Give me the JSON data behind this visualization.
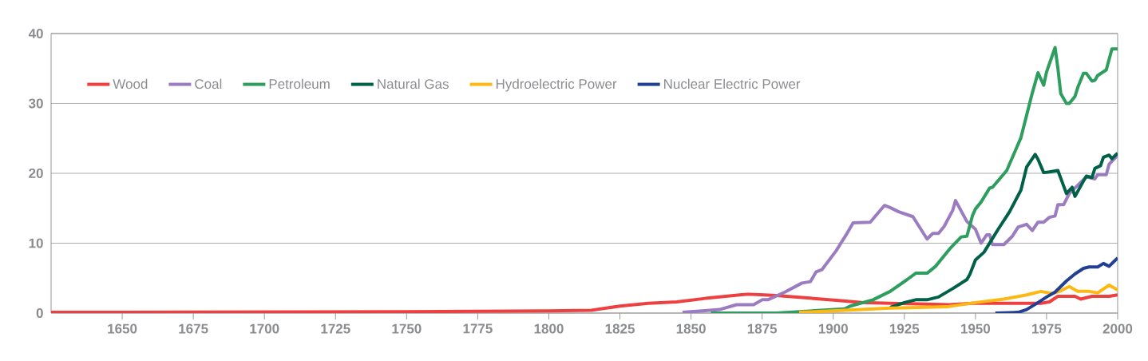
{
  "chart_data": {
    "type": "line",
    "xlim": [
      1625,
      2000
    ],
    "ylim": [
      0,
      40
    ],
    "xticks": [
      1650,
      1675,
      1700,
      1725,
      1750,
      1775,
      1800,
      1825,
      1850,
      1875,
      1900,
      1925,
      1950,
      1975,
      2000
    ],
    "yticks": [
      0,
      10,
      20,
      30,
      40
    ],
    "grid": "y",
    "legend": "top left",
    "marker": "none",
    "line_style": "solid",
    "series": [
      {
        "name": "Wood",
        "color": "#ee4040",
        "x": [
          1625,
          1650,
          1750,
          1800,
          1815,
          1825,
          1835,
          1845,
          1855,
          1865,
          1870,
          1880,
          1890,
          1902,
          1910,
          1920,
          1930,
          1941,
          1949,
          1960,
          1973,
          1976,
          1979,
          1985,
          1987,
          1991,
          1997,
          2000
        ],
        "values": [
          0.1,
          0.1,
          0.2,
          0.3,
          0.4,
          1.0,
          1.4,
          1.6,
          2.1,
          2.5,
          2.7,
          2.5,
          2.2,
          1.8,
          1.5,
          1.4,
          1.3,
          1.2,
          1.4,
          1.4,
          1.4,
          1.6,
          2.4,
          2.4,
          2.0,
          2.4,
          2.4,
          2.6
        ]
      },
      {
        "name": "Coal",
        "color": "#9b7cc0",
        "x": [
          1847,
          1854,
          1860,
          1866,
          1872,
          1875,
          1877,
          1883,
          1889,
          1892,
          1894,
          1896,
          1901,
          1905,
          1907,
          1913,
          1918,
          1920,
          1923,
          1928,
          1933,
          1935,
          1937,
          1939,
          1942,
          1943,
          1947,
          1950,
          1952,
          1954,
          1955,
          1956,
          1960,
          1963,
          1965,
          1968,
          1970,
          1972,
          1974,
          1976,
          1978,
          1979,
          1981,
          1983,
          1985,
          1989,
          1992,
          1993,
          1996,
          1997,
          2000
        ],
        "values": [
          0.1,
          0.3,
          0.5,
          1.2,
          1.2,
          1.9,
          1.9,
          3.0,
          4.3,
          4.5,
          5.9,
          6.2,
          8.9,
          11.5,
          12.9,
          13.0,
          15.4,
          15.1,
          14.5,
          13.8,
          10.6,
          11.4,
          11.4,
          12.4,
          14.7,
          16.1,
          13.1,
          12.0,
          10.0,
          11.2,
          11.2,
          9.8,
          9.8,
          11.0,
          12.3,
          12.7,
          11.8,
          13.0,
          13.0,
          13.7,
          13.9,
          15.5,
          15.5,
          17.1,
          17.9,
          19.5,
          19.2,
          19.8,
          19.8,
          21.3,
          22.6
        ]
      },
      {
        "name": "Petroleum",
        "color": "#2e9e5e",
        "x": [
          1857,
          1880,
          1904,
          1906,
          1914,
          1920,
          1926,
          1929,
          1933,
          1936,
          1941,
          1945,
          1947,
          1949,
          1950,
          1952,
          1955,
          1956,
          1961,
          1966,
          1970,
          1972,
          1974,
          1975,
          1978,
          1979,
          1980,
          1982,
          1983,
          1985,
          1986,
          1988,
          1989,
          1991,
          1992,
          1993,
          1996,
          1998,
          2000
        ],
        "values": [
          0.0,
          0.0,
          0.6,
          1.0,
          1.9,
          3.1,
          4.8,
          5.7,
          5.7,
          6.7,
          9.2,
          10.9,
          11.0,
          14.0,
          14.9,
          15.9,
          17.9,
          18.0,
          20.4,
          25.1,
          31.5,
          34.4,
          32.6,
          34.5,
          38.0,
          35.0,
          31.4,
          30.0,
          30.0,
          31.0,
          32.3,
          34.3,
          34.3,
          33.2,
          33.3,
          34.0,
          34.8,
          37.8,
          37.8
        ]
      },
      {
        "name": "Natural Gas",
        "color": "#006048",
        "x": [
          1920,
          1925,
          1929,
          1933,
          1937,
          1942,
          1947,
          1948,
          1950,
          1953,
          1958,
          1962,
          1966,
          1968,
          1971,
          1972,
          1974,
          1976,
          1979,
          1980,
          1982,
          1984,
          1985,
          1988,
          1989,
          1991,
          1992,
          1994,
          1995,
          1997,
          1998,
          2000
        ],
        "values": [
          0.8,
          1.5,
          1.9,
          1.9,
          2.3,
          3.5,
          4.8,
          5.5,
          7.6,
          8.7,
          12.0,
          14.5,
          17.6,
          20.9,
          22.7,
          22.0,
          20.1,
          20.2,
          20.4,
          19.3,
          17.1,
          18.0,
          16.7,
          18.9,
          19.6,
          19.4,
          20.7,
          21.1,
          22.3,
          22.6,
          22.1,
          22.9
        ]
      },
      {
        "name": "Hydroelectric Power",
        "color": "#fdb813",
        "x": [
          1888,
          1900,
          1910,
          1920,
          1930,
          1940,
          1950,
          1960,
          1968,
          1973,
          1977,
          1980,
          1983,
          1986,
          1990,
          1993,
          1997,
          2000
        ],
        "values": [
          0.1,
          0.3,
          0.5,
          0.7,
          0.8,
          0.9,
          1.5,
          2.0,
          2.6,
          3.1,
          2.8,
          3.2,
          3.8,
          3.1,
          3.1,
          2.9,
          4.0,
          3.3
        ]
      },
      {
        "name": "Nuclear Electric Power",
        "color": "#223f94",
        "x": [
          1957,
          1965,
          1968,
          1972,
          1975,
          1978,
          1982,
          1985,
          1988,
          1990,
          1993,
          1995,
          1997,
          2000
        ],
        "values": [
          0.0,
          0.1,
          0.5,
          1.5,
          2.3,
          3.0,
          4.6,
          5.6,
          6.4,
          6.6,
          6.6,
          7.1,
          6.7,
          7.9
        ]
      }
    ]
  }
}
